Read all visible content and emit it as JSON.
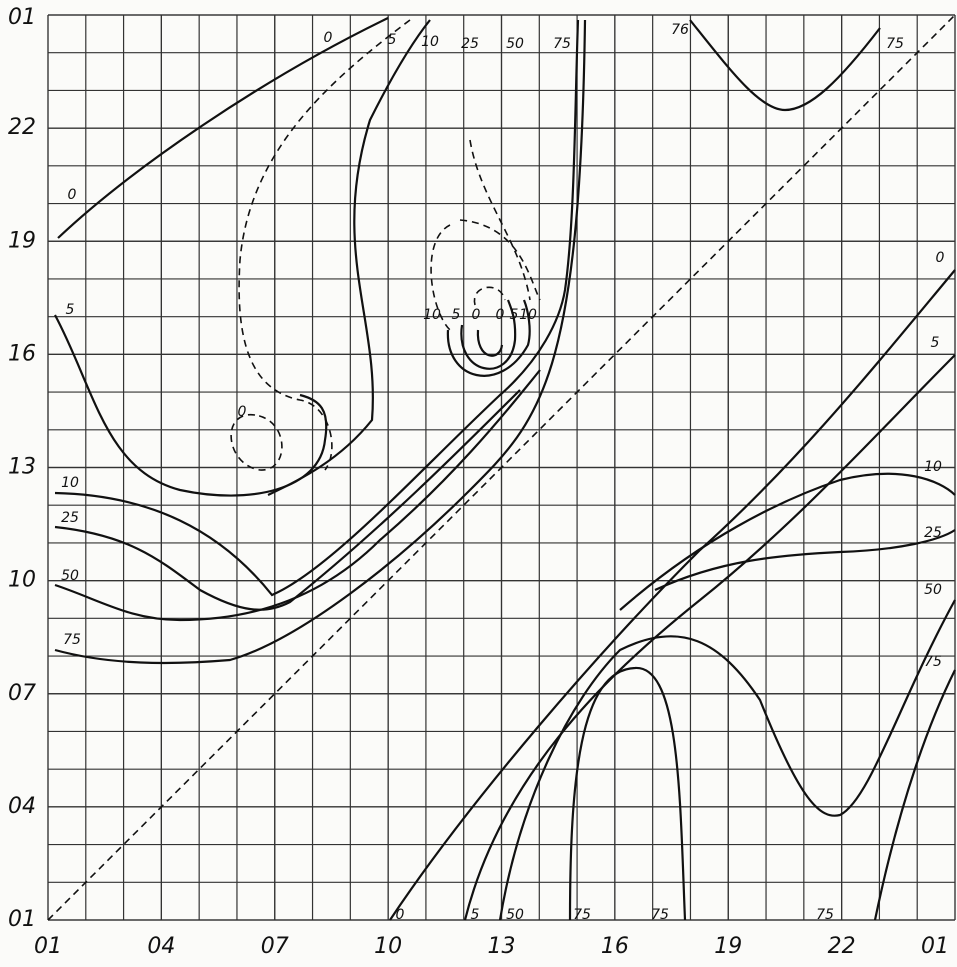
{
  "chart_data": {
    "type": "contour",
    "xlim": [
      1,
      25
    ],
    "ylim": [
      1,
      25
    ],
    "xticks": [
      {
        "value": 1,
        "label": "01"
      },
      {
        "value": 4,
        "label": "04"
      },
      {
        "value": 7,
        "label": "07"
      },
      10,
      13,
      16,
      19,
      22,
      {
        "value": 25,
        "label": "01"
      }
    ],
    "yticks": [
      {
        "value": 1,
        "label": "01"
      },
      {
        "value": 4,
        "label": "04"
      },
      {
        "value": 7,
        "label": "07"
      },
      10,
      13,
      16,
      19,
      22,
      {
        "value": 25,
        "label": "01"
      }
    ],
    "grid": true,
    "contour_labels": [
      "0",
      "5",
      "10",
      "25",
      "50",
      "75",
      "76",
      "75",
      "0",
      "5",
      "10",
      "25",
      "50",
      "75",
      "10",
      "5",
      "0",
      "0",
      "5",
      "10",
      "0",
      "0",
      "5",
      "10",
      "25",
      "50",
      "75",
      "0",
      "5",
      "50",
      "75",
      "75",
      "75"
    ]
  }
}
